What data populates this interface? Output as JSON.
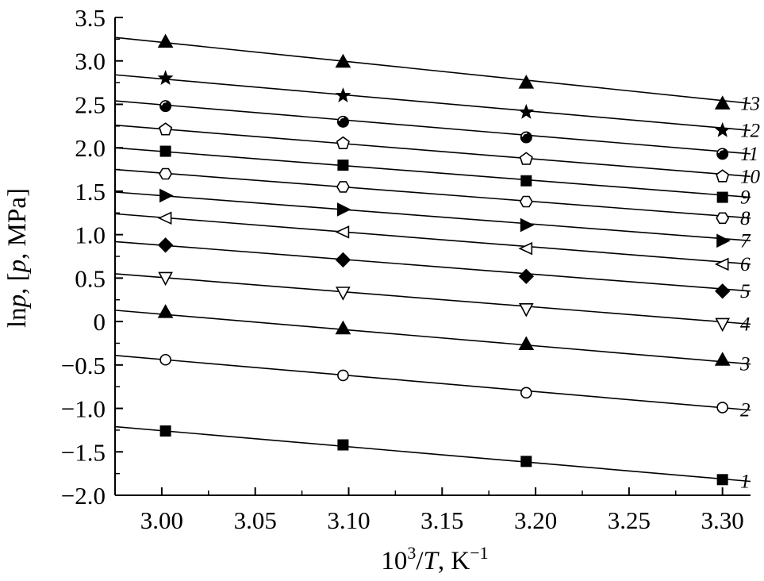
{
  "chart_data": {
    "type": "scatter",
    "title": "",
    "xlabel": {
      "prefix": "10",
      "sup": "3",
      "mid": "/",
      "var": "T",
      "suffix": ", K",
      "sup2": "−1"
    },
    "ylabel": {
      "pre": "ln",
      "var": "p",
      "mid": ", [",
      "var2": "p",
      "post": ", MPa]"
    },
    "xlim": [
      2.975,
      3.315
    ],
    "ylim": [
      -2.0,
      3.5
    ],
    "xticks": [
      "3.00",
      "3.05",
      "3.10",
      "3.15",
      "3.20",
      "3.25",
      "3.30"
    ],
    "yticks": [
      "3.5",
      "3.0",
      "2.5",
      "2.0",
      "1.5",
      "1.0",
      "0.5",
      "0",
      "-0.5",
      "-1.0",
      "-1.5",
      "-2.0"
    ],
    "ytick_values": [
      3.5,
      3.0,
      2.5,
      2.0,
      1.5,
      1.0,
      0.5,
      0,
      -0.5,
      -1.0,
      -1.5,
      -2.0
    ],
    "xtick_values": [
      3.0,
      3.05,
      3.1,
      3.15,
      3.2,
      3.25,
      3.3
    ],
    "grid": false,
    "x": [
      3.002,
      3.097,
      3.195,
      3.3
    ],
    "series": [
      {
        "name": "1",
        "marker": "square-filled",
        "values": [
          -1.26,
          -1.42,
          -1.61,
          -1.82
        ],
        "fit": [
          -1.21,
          -1.84
        ]
      },
      {
        "name": "2",
        "marker": "circle-open",
        "values": [
          -0.44,
          -0.62,
          -0.82,
          -0.99
        ],
        "fit": [
          -0.39,
          -1.02
        ]
      },
      {
        "name": "3",
        "marker": "triangle-filled",
        "values": [
          0.11,
          -0.08,
          -0.26,
          -0.44
        ],
        "fit": [
          0.13,
          -0.49
        ]
      },
      {
        "name": "4",
        "marker": "triangle-down-open",
        "values": [
          0.5,
          0.33,
          0.14,
          -0.03
        ],
        "fit": [
          0.55,
          -0.03
        ]
      },
      {
        "name": "5",
        "marker": "diamond-filled",
        "values": [
          0.88,
          0.71,
          0.52,
          0.35
        ],
        "fit": [
          0.92,
          0.35
        ]
      },
      {
        "name": "6",
        "marker": "triangle-left-open",
        "values": [
          1.19,
          1.03,
          0.84,
          0.66
        ],
        "fit": [
          1.24,
          0.66
        ]
      },
      {
        "name": "7",
        "marker": "triangle-right-filled",
        "values": [
          1.45,
          1.29,
          1.11,
          0.93
        ],
        "fit": [
          1.49,
          0.93
        ]
      },
      {
        "name": "8",
        "marker": "hexagon-open",
        "values": [
          1.7,
          1.55,
          1.38,
          1.19
        ],
        "fit": [
          1.75,
          1.19
        ]
      },
      {
        "name": "9",
        "marker": "square-filled",
        "values": [
          1.96,
          1.8,
          1.62,
          1.43
        ],
        "fit": [
          2.0,
          1.43
        ]
      },
      {
        "name": "10",
        "marker": "pentagon-open",
        "values": [
          2.21,
          2.05,
          1.87,
          1.67
        ],
        "fit": [
          2.26,
          1.67
        ]
      },
      {
        "name": "11",
        "marker": "circle-half",
        "values": [
          2.48,
          2.3,
          2.12,
          1.93
        ],
        "fit": [
          2.54,
          1.93
        ]
      },
      {
        "name": "12",
        "marker": "star-filled",
        "values": [
          2.8,
          2.6,
          2.41,
          2.2
        ],
        "fit": [
          2.84,
          2.2
        ]
      },
      {
        "name": "13",
        "marker": "triangle-filled",
        "values": [
          3.22,
          2.99,
          2.75,
          2.51
        ],
        "fit": [
          3.27,
          2.51
        ]
      }
    ]
  }
}
